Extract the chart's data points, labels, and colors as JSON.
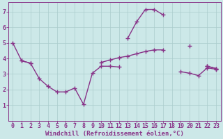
{
  "lines": [
    {
      "x": [
        0,
        1,
        2,
        3,
        4,
        5,
        6,
        7,
        8,
        9,
        10,
        11,
        12,
        13,
        14,
        15,
        16,
        17,
        18,
        19,
        20,
        21,
        22,
        23
      ],
      "y": [
        5.0,
        3.85,
        3.7,
        null,
        null,
        null,
        null,
        null,
        null,
        null,
        null,
        null,
        null,
        5.3,
        6.35,
        7.15,
        7.15,
        6.8,
        null,
        null,
        4.8,
        null,
        3.5,
        3.35
      ]
    },
    {
      "x": [
        0,
        1,
        2,
        3,
        4,
        5,
        6,
        7,
        8,
        9,
        10,
        11,
        12,
        13,
        14,
        15,
        16,
        17,
        18,
        19,
        20,
        21,
        22,
        23
      ],
      "y": [
        null,
        3.85,
        3.7,
        2.7,
        2.2,
        1.85,
        1.85,
        2.1,
        1.05,
        3.05,
        3.5,
        3.5,
        3.45,
        null,
        null,
        null,
        null,
        null,
        null,
        null,
        null,
        null,
        3.5,
        3.35
      ]
    },
    {
      "x": [
        0,
        1,
        2,
        3,
        4,
        5,
        6,
        7,
        8,
        9,
        10,
        11,
        12,
        13,
        14,
        15,
        16,
        17,
        18,
        19,
        20,
        21,
        22,
        23
      ],
      "y": [
        null,
        null,
        null,
        null,
        null,
        null,
        null,
        null,
        null,
        null,
        3.75,
        3.9,
        4.05,
        4.15,
        4.3,
        4.45,
        4.55,
        4.55,
        null,
        3.15,
        3.05,
        2.9,
        3.4,
        3.3
      ]
    }
  ],
  "line_color": "#883388",
  "marker": "+",
  "markersize": 4,
  "linewidth": 1.0,
  "background_color": "#cce8e8",
  "grid_color": "#aacccc",
  "spine_color": "#883388",
  "tick_color": "#883388",
  "xlabel": "Windchill (Refroidissement éolien,°C)",
  "xlim": [
    -0.5,
    23.5
  ],
  "ylim": [
    0,
    7.6
  ],
  "yticks": [
    1,
    2,
    3,
    4,
    5,
    6,
    7
  ],
  "xticks": [
    0,
    1,
    2,
    3,
    4,
    5,
    6,
    7,
    8,
    9,
    10,
    11,
    12,
    13,
    14,
    15,
    16,
    17,
    18,
    19,
    20,
    21,
    22,
    23
  ],
  "xlabel_fontsize": 6.5,
  "tick_fontsize": 6.0
}
